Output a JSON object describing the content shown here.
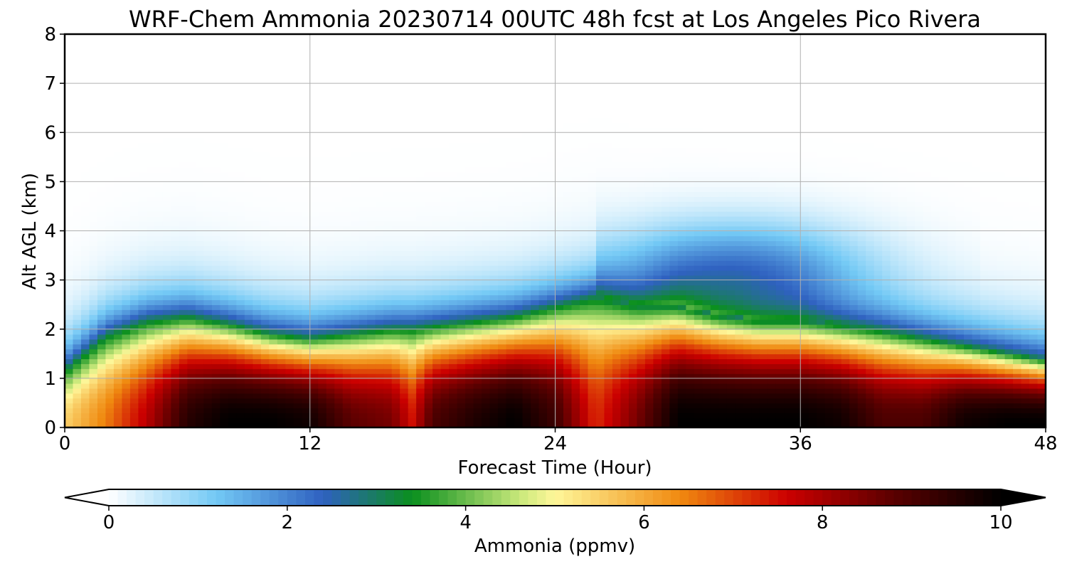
{
  "chart_data": {
    "type": "heatmap",
    "title": "WRF-Chem Ammonia  20230714 00UTC 48h fcst at Los Angeles Pico Rivera",
    "xlabel": "Forecast Time (Hour)",
    "ylabel": "Alt AGL (km)",
    "xlim": [
      0,
      48
    ],
    "ylim": [
      0,
      8
    ],
    "xticks": [
      0,
      12,
      24,
      36,
      48
    ],
    "yticks": [
      0,
      1,
      2,
      3,
      4,
      5,
      6,
      7,
      8
    ],
    "grid": true,
    "colorbar": {
      "label": "Ammonia  (ppmv)",
      "range": [
        0,
        10
      ],
      "ticks": [
        0,
        2,
        4,
        6,
        8,
        10
      ],
      "extend": "both",
      "orientation": "horizontal",
      "stops": [
        {
          "v": 0,
          "c": "#ffffff"
        },
        {
          "v": 1.2,
          "c": "#73c9f5"
        },
        {
          "v": 2.4,
          "c": "#2f61c0"
        },
        {
          "v": 3.4,
          "c": "#0a8f1e"
        },
        {
          "v": 4.6,
          "c": "#c8e87a"
        },
        {
          "v": 5.0,
          "c": "#fff79a"
        },
        {
          "v": 6.4,
          "c": "#f08a10"
        },
        {
          "v": 7.6,
          "c": "#cc0000"
        },
        {
          "v": 8.8,
          "c": "#5a0000"
        },
        {
          "v": 10,
          "c": "#000000"
        }
      ]
    },
    "series": [
      {
        "hours": [
          0,
          2,
          4,
          6,
          8,
          10,
          12,
          14,
          16,
          17,
          18,
          20,
          22,
          24,
          26,
          28,
          30,
          32,
          34,
          36,
          38,
          40,
          42,
          44,
          46,
          48
        ],
        "mixing_top_km": [
          1.2,
          1.9,
          2.2,
          2.3,
          2.15,
          1.95,
          1.85,
          1.95,
          2.05,
          2.05,
          2.1,
          2.2,
          2.3,
          2.5,
          2.7,
          2.5,
          2.5,
          2.3,
          2.2,
          2.2,
          2.1,
          2.0,
          1.85,
          1.7,
          1.55,
          1.4
        ]
      },
      {
        "hours": [
          0,
          2,
          4,
          6,
          8,
          10,
          12,
          14,
          16,
          17,
          18,
          20,
          22,
          24,
          26,
          28,
          30,
          32,
          34,
          36,
          38,
          40,
          42,
          44,
          46,
          48
        ],
        "surface_conc_ppmv": [
          5.5,
          6.5,
          7.8,
          9.5,
          10,
          10,
          9.8,
          8.8,
          8.5,
          7.5,
          9,
          9.6,
          10,
          9.2,
          7.2,
          8.5,
          10,
          10,
          10,
          10,
          9.8,
          9,
          9,
          9.8,
          10,
          10
        ]
      }
    ]
  }
}
